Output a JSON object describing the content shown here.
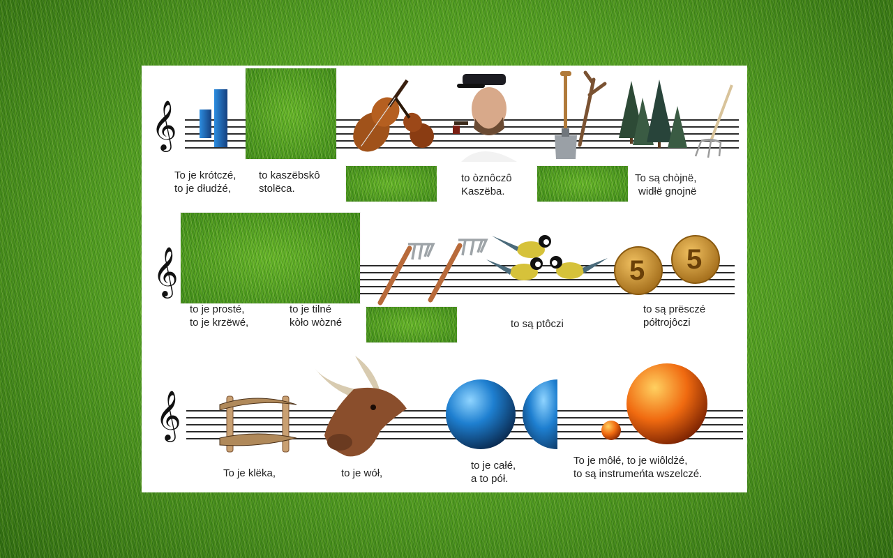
{
  "game": {
    "rows": [
      {
        "clef": "𝄞",
        "captions": [
          {
            "lines": [
              "To je krótczé,",
              "to je dłudżé,"
            ]
          },
          {
            "lines": [
              "to kaszëbskô",
              "stolëca."
            ]
          },
          {
            "lines": [
              "to òznôczô",
              "Kaszëba."
            ]
          },
          {
            "lines": [
              "To są chòjnë,",
              "widłë gnojnë"
            ]
          }
        ]
      },
      {
        "clef": "𝄞",
        "captions": [
          {
            "lines": [
              "to je prosté,",
              "to je krzëwé,"
            ]
          },
          {
            "lines": [
              "to je tilné",
              "kòło wòzné"
            ]
          },
          {
            "lines": [
              "to są ptôczi"
            ]
          },
          {
            "lines": [
              "to są prësczé",
              "półtrojôczi"
            ]
          }
        ]
      },
      {
        "clef": "𝄞",
        "captions": [
          {
            "lines": [
              "To je klëka,"
            ]
          },
          {
            "lines": [
              "to je wół,"
            ]
          },
          {
            "lines": [
              "to je całé,",
              "a to pół."
            ]
          },
          {
            "lines": [
              "To je môłé, to je wiôldżé,",
              "to są instrumeńta wszelczé."
            ]
          }
        ]
      }
    ],
    "coin_digit": "5",
    "colors": {
      "grass": "#4f9a20",
      "card": "#ffffff",
      "staff_line": "#2a2a2a",
      "bars_blue": "#1f5fb0",
      "sphere_blue": "#1e7fd0",
      "sphere_orange": "#f06a10",
      "coin_gold": "#c8902a"
    }
  }
}
